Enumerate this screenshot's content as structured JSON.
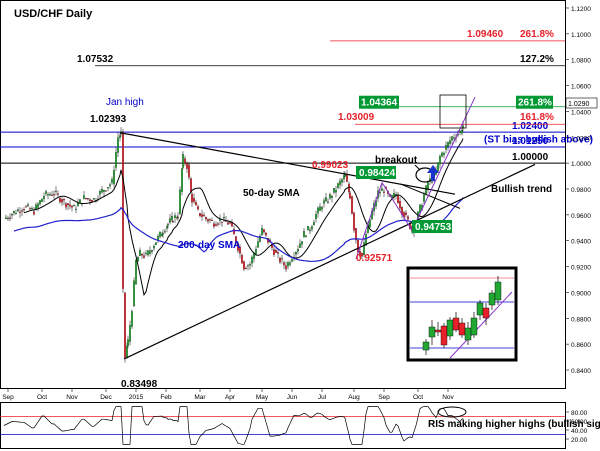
{
  "chart_data": {
    "type": "candlestick",
    "title": "USD/CHF Daily",
    "symbol": "USD/CHF",
    "timeframe": "Daily",
    "x_tick_labels": [
      "Sep",
      "Oct",
      "Nov",
      "Dec",
      "2015",
      "Feb",
      "Mar",
      "Apr",
      "May",
      "Jun",
      "Jul",
      "Aug",
      "Sep",
      "Oct",
      "Nov"
    ],
    "y_tick_labels": [
      "1.1200",
      "1.1000",
      "1.0800",
      "1.0600",
      "1.0400",
      "1.0200",
      "1.0000",
      "0.9800",
      "0.9600",
      "0.9400",
      "0.9200",
      "0.9000",
      "0.8800",
      "0.8600",
      "0.8400"
    ],
    "ylim": [
      0.835,
      1.12
    ],
    "price_tag": "1.0290",
    "price_tag_value": 1.029,
    "fib_levels": [
      {
        "label": "1.09460",
        "value": 1.0946,
        "pct": "261.8%",
        "color": "#e8202a"
      },
      {
        "label": "1.07532",
        "value": 1.07532,
        "pct": "127.2%",
        "color": "#000000"
      },
      {
        "label": "1.04364",
        "value": 1.04364,
        "pct": "261.8%",
        "color": "#009933"
      },
      {
        "label": "1.03009",
        "value": 1.03009,
        "pct": "161.8%",
        "color": "#e8202a"
      }
    ],
    "horizontal_levels": [
      {
        "label": "1.02400",
        "value": 1.024,
        "color": "#0000cc"
      },
      {
        "label": "1.01250",
        "value": 1.0125,
        "color": "#0000cc"
      },
      {
        "label": "1.00000",
        "value": 1.0,
        "color": "#000000"
      }
    ],
    "zone_label": "(ST bias bullish above)",
    "annotations": [
      {
        "text": "Jan high",
        "color": "#0000cc"
      },
      {
        "text": "1.02393",
        "color": "#000000"
      },
      {
        "text": "0.99023",
        "color": "#e8202a"
      },
      {
        "text": "0.98424",
        "color": "#ffffff",
        "bg": "#009933"
      },
      {
        "text": "breakout",
        "color": "#000000"
      },
      {
        "text": "50-day SMA",
        "color": "#000000"
      },
      {
        "text": "Bullish trend",
        "color": "#000000"
      },
      {
        "text": "200-day SMA",
        "color": "#0000cc"
      },
      {
        "text": "0.94753",
        "color": "#ffffff",
        "bg": "#009933"
      },
      {
        "text": "0.92571",
        "color": "#e8202a"
      },
      {
        "text": "0.83498",
        "color": "#000000"
      }
    ],
    "rsi": {
      "y_tick_labels": [
        "80.00",
        "60.00",
        "40.00",
        "20.00"
      ],
      "annotation": "RIS making higher highs (bullish sign)"
    },
    "colors": {
      "up": "#22a832",
      "down": "#e8202a",
      "sma50": "#000000",
      "sma200": "#2222cc",
      "trend": "#000000",
      "fib_green": "#009933",
      "fib_red": "#e8202a"
    }
  }
}
